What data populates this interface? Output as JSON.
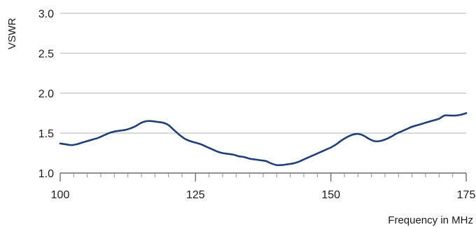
{
  "chart_data": {
    "type": "line",
    "title": "",
    "xlabel": "Frequency in MHz",
    "ylabel": "VSWR",
    "xlim": [
      100,
      175
    ],
    "ylim": [
      1.0,
      3.0
    ],
    "x_ticks": [
      100,
      125,
      150,
      175
    ],
    "x_tick_labels": [
      "100",
      "125",
      "150",
      "175"
    ],
    "x_minor_ticks": [
      102.5,
      105,
      107.5,
      110,
      112.5,
      115,
      117.5,
      120,
      122.5,
      127.5,
      130,
      132.5,
      135,
      137.5,
      140,
      142.5,
      145,
      147.5,
      152.5,
      155,
      157.5,
      160,
      162.5,
      165,
      167.5,
      170,
      172.5
    ],
    "y_ticks": [
      1.0,
      1.5,
      2.0,
      2.5,
      3.0
    ],
    "y_tick_labels": [
      "1.0",
      "1.5",
      "2.0",
      "2.5",
      "3.0"
    ],
    "grid": "horizontal",
    "legend": "none",
    "line_color": "#1f3f7a",
    "series": [
      {
        "x": [
          100,
          101,
          102,
          103,
          104,
          105,
          106,
          107,
          108,
          109,
          110,
          111,
          112,
          113,
          114,
          115,
          116,
          117,
          118,
          119,
          120,
          121,
          122,
          123,
          124,
          125,
          126,
          127,
          128,
          129,
          130,
          131,
          132,
          133,
          134,
          135,
          136,
          137,
          138,
          139,
          140,
          141,
          142,
          143,
          144,
          145,
          146,
          147,
          148,
          149,
          150,
          151,
          152,
          153,
          154,
          155,
          156,
          157,
          158,
          159,
          160,
          161,
          162,
          163,
          164,
          165,
          166,
          167,
          168,
          169,
          170,
          171,
          172,
          173,
          174,
          175
        ],
        "values": [
          1.37,
          1.36,
          1.35,
          1.36,
          1.38,
          1.4,
          1.42,
          1.44,
          1.47,
          1.5,
          1.52,
          1.53,
          1.54,
          1.56,
          1.59,
          1.63,
          1.65,
          1.65,
          1.64,
          1.63,
          1.6,
          1.54,
          1.48,
          1.43,
          1.4,
          1.38,
          1.36,
          1.33,
          1.3,
          1.27,
          1.25,
          1.24,
          1.23,
          1.21,
          1.2,
          1.18,
          1.17,
          1.16,
          1.15,
          1.12,
          1.1,
          1.1,
          1.11,
          1.12,
          1.14,
          1.17,
          1.2,
          1.23,
          1.26,
          1.29,
          1.32,
          1.36,
          1.41,
          1.45,
          1.48,
          1.49,
          1.47,
          1.43,
          1.4,
          1.4,
          1.42,
          1.45,
          1.49,
          1.52,
          1.55,
          1.58,
          1.6,
          1.62,
          1.64,
          1.66,
          1.68,
          1.72,
          1.72,
          1.72,
          1.73,
          1.75
        ]
      }
    ]
  }
}
